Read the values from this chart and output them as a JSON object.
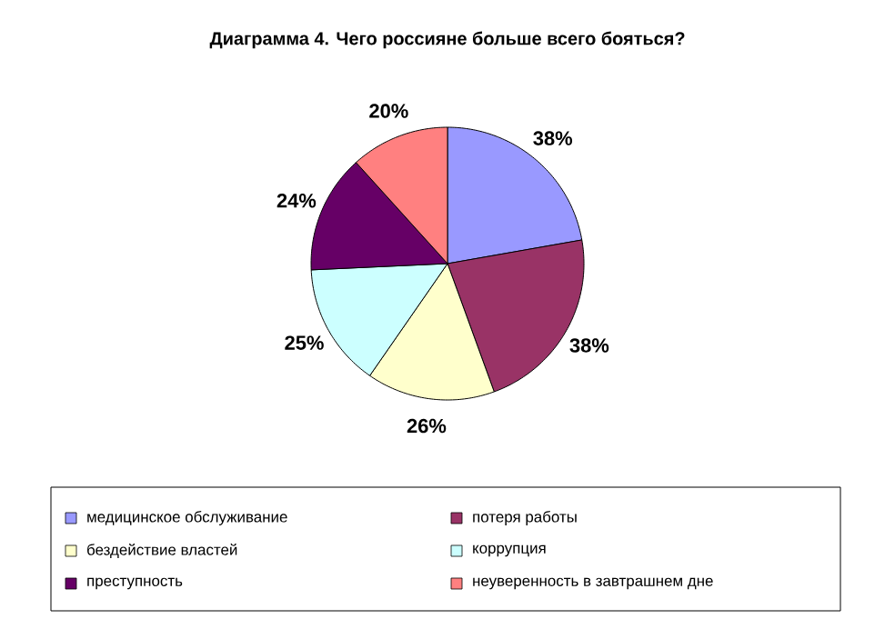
{
  "chart_data": {
    "type": "pie",
    "title": "Диаграмма 4. Чего россияне больше всего бояться?",
    "categories": [
      "медицинское обслуживание",
      "потеря работы",
      "бездействие властей",
      "коррупция",
      "преступность",
      "неуверенность в завтрашнем дне"
    ],
    "values": [
      38,
      38,
      26,
      25,
      24,
      20
    ],
    "value_labels": [
      "38%",
      "38%",
      "26%",
      "25%",
      "24%",
      "20%"
    ],
    "colors": [
      "#9999ff",
      "#993366",
      "#ffffcc",
      "#ccffff",
      "#660066",
      "#ff8080"
    ],
    "legend": "bottom"
  }
}
